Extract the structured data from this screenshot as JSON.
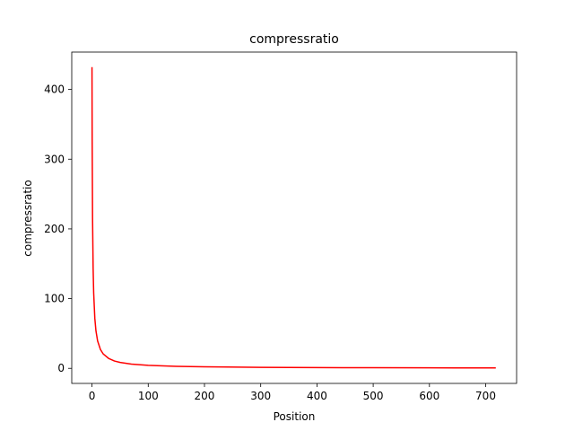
{
  "chart_data": {
    "type": "line",
    "title": "compressratio",
    "xlabel": "Position",
    "ylabel": "compressratio",
    "xlim": [
      -36,
      755
    ],
    "ylim": [
      -21.6,
      453.6
    ],
    "xticks": [
      0,
      100,
      200,
      300,
      400,
      500,
      600,
      700
    ],
    "yticks": [
      0,
      100,
      200,
      300,
      400
    ],
    "grid": false,
    "series": [
      {
        "color": "#ff0000",
        "x": [
          0,
          0.3,
          1,
          2,
          3,
          5,
          7,
          10,
          15,
          20,
          30,
          40,
          50,
          70,
          100,
          150,
          200,
          300,
          400,
          500,
          600,
          718
        ],
        "y": [
          432,
          330,
          216,
          144,
          108,
          72,
          54,
          39.3,
          27,
          20.6,
          14,
          10.5,
          8.5,
          6.1,
          4.3,
          2.9,
          2.15,
          1.43,
          1.08,
          0.86,
          0.72,
          0.6
        ]
      }
    ]
  }
}
